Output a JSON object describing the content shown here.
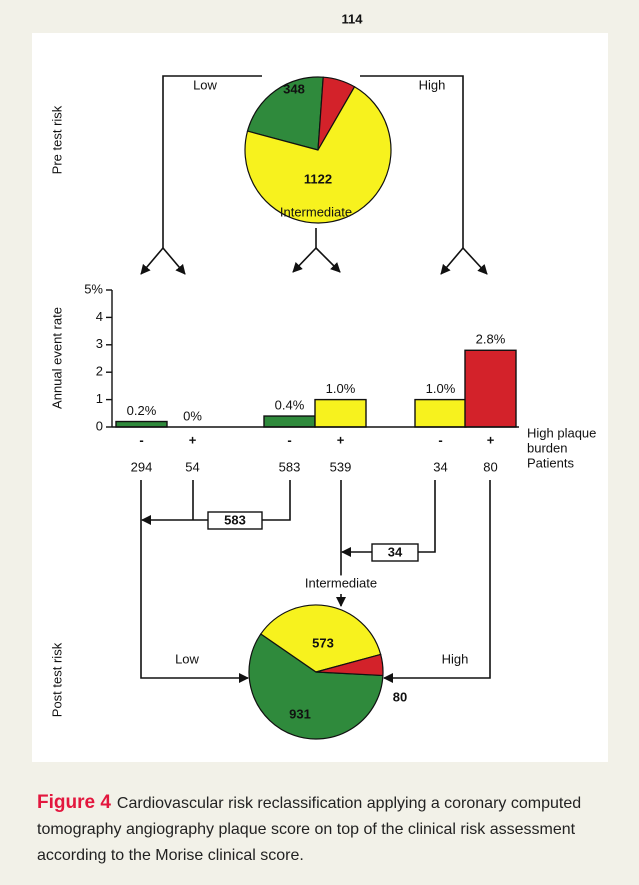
{
  "chart_data": [
    {
      "type": "pie",
      "side_label": "Pre test risk",
      "categories": [
        "Low",
        "High",
        "Intermediate"
      ],
      "values": [
        348,
        114,
        1122
      ],
      "colors": [
        "#2f8a3c",
        "#d3222a",
        "#f7f21e"
      ]
    },
    {
      "type": "bar",
      "ylabel": "Annual event rate",
      "categories": [
        "-",
        "+",
        "-",
        "+",
        "-",
        "+"
      ],
      "values": [
        0.2,
        0,
        0.4,
        1.0,
        1.0,
        2.8
      ],
      "value_labels": [
        "0.2%",
        "0%",
        "0.4%",
        "1.0%",
        "1.0%",
        "2.8%"
      ],
      "colors": [
        "#2f8a3c",
        "#2f8a3c",
        "#2f8a3c",
        "#f7f21e",
        "#f7f21e",
        "#d3222a"
      ],
      "ylim": [
        0,
        5
      ],
      "yticks": [
        0,
        1,
        2,
        3,
        4,
        {
          "value": 5,
          "label": "5%"
        }
      ],
      "row_label": [
        "High plaque",
        "burden"
      ],
      "patients_label": "Patients",
      "patients": [
        294,
        54,
        583,
        539,
        34,
        80
      ]
    },
    {
      "type": "pie",
      "side_label": "Post test risk",
      "categories": [
        "Low",
        "Intermediate",
        "High"
      ],
      "values": [
        931,
        573,
        80
      ],
      "colors": [
        "#2f8a3c",
        "#f7f21e",
        "#d3222a"
      ]
    }
  ],
  "reclassification": [
    583,
    34
  ],
  "figure": {
    "label": "Figure 4",
    "caption": "Cardiovascular risk reclassification applying a coronary computed tomography angiography plaque score on top of the clinical risk assessment according to the Morise clinical score."
  }
}
